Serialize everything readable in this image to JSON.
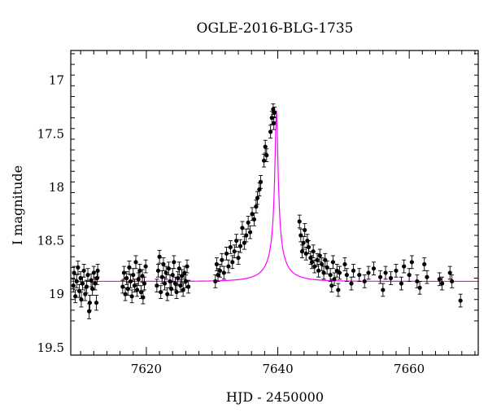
{
  "chart_data": {
    "type": "scatter",
    "title": "OGLE-2016-BLG-1735",
    "xlabel": "HJD - 2450000",
    "ylabel": "I magnitude",
    "xlim": [
      7608.5,
      7670.5
    ],
    "ylim": [
      19.57,
      16.72
    ],
    "y_inverted": true,
    "xticks": [
      7620,
      7640,
      7660
    ],
    "yticks": [
      17,
      17.5,
      18,
      18.5,
      19,
      19.5
    ],
    "grid": false,
    "legend": "none",
    "colors": {
      "points": "#000000",
      "model": "#ff00ff"
    },
    "model": {
      "type": "point-lens microlensing",
      "t0": 7639.8,
      "tE": 4.5,
      "u0": 0.05,
      "baseline_mag": 18.88,
      "peak_mag": 17.28
    },
    "series": [
      {
        "values": [
          [
            7608.9,
            18.92,
            0.06
          ],
          [
            7609.0,
            18.8,
            0.06
          ],
          [
            7609.2,
            19.02,
            0.06
          ],
          [
            7609.4,
            18.88,
            0.06
          ],
          [
            7609.6,
            18.75,
            0.06
          ],
          [
            7609.8,
            18.97,
            0.06
          ],
          [
            7610.0,
            18.85,
            0.06
          ],
          [
            7610.1,
            19.05,
            0.07
          ],
          [
            7610.3,
            18.9,
            0.06
          ],
          [
            7610.5,
            18.78,
            0.06
          ],
          [
            7610.7,
            19.0,
            0.06
          ],
          [
            7610.9,
            18.93,
            0.06
          ],
          [
            7611.1,
            18.82,
            0.06
          ],
          [
            7611.3,
            19.16,
            0.07
          ],
          [
            7611.4,
            19.08,
            0.07
          ],
          [
            7611.6,
            18.87,
            0.06
          ],
          [
            7611.8,
            18.95,
            0.06
          ],
          [
            7612.0,
            18.8,
            0.06
          ],
          [
            7612.2,
            18.9,
            0.06
          ],
          [
            7612.4,
            19.08,
            0.07
          ],
          [
            7612.5,
            18.85,
            0.06
          ],
          [
            7612.6,
            18.78,
            0.06
          ],
          [
            7616.4,
            18.93,
            0.06
          ],
          [
            7616.6,
            18.8,
            0.06
          ],
          [
            7616.8,
            19.0,
            0.06
          ],
          [
            7617.0,
            18.85,
            0.06
          ],
          [
            7617.2,
            18.95,
            0.06
          ],
          [
            7617.4,
            18.75,
            0.06
          ],
          [
            7617.6,
            18.88,
            0.06
          ],
          [
            7617.8,
            19.02,
            0.06
          ],
          [
            7618.0,
            18.82,
            0.06
          ],
          [
            7618.2,
            18.92,
            0.06
          ],
          [
            7618.4,
            18.7,
            0.06
          ],
          [
            7618.6,
            18.96,
            0.06
          ],
          [
            7618.8,
            18.86,
            0.06
          ],
          [
            7619.0,
            18.78,
            0.06
          ],
          [
            7619.2,
            18.98,
            0.06
          ],
          [
            7619.4,
            18.83,
            0.06
          ],
          [
            7619.5,
            19.03,
            0.06
          ],
          [
            7619.7,
            18.9,
            0.06
          ],
          [
            7619.9,
            18.74,
            0.06
          ],
          [
            7621.6,
            18.92,
            0.06
          ],
          [
            7621.8,
            18.78,
            0.06
          ],
          [
            7622.0,
            18.65,
            0.06
          ],
          [
            7622.2,
            18.98,
            0.06
          ],
          [
            7622.4,
            18.84,
            0.06
          ],
          [
            7622.6,
            18.72,
            0.06
          ],
          [
            7622.8,
            18.9,
            0.06
          ],
          [
            7623.0,
            18.8,
            0.06
          ],
          [
            7623.2,
            19.0,
            0.06
          ],
          [
            7623.4,
            18.76,
            0.06
          ],
          [
            7623.6,
            18.88,
            0.06
          ],
          [
            7623.8,
            18.95,
            0.06
          ],
          [
            7624.0,
            18.82,
            0.06
          ],
          [
            7624.2,
            18.7,
            0.06
          ],
          [
            7624.4,
            18.9,
            0.06
          ],
          [
            7624.6,
            18.98,
            0.06
          ],
          [
            7624.8,
            18.85,
            0.06
          ],
          [
            7625.0,
            18.76,
            0.06
          ],
          [
            7625.2,
            18.92,
            0.06
          ],
          [
            7625.4,
            18.83,
            0.06
          ],
          [
            7625.6,
            18.96,
            0.06
          ],
          [
            7625.8,
            18.8,
            0.06
          ],
          [
            7626.0,
            18.88,
            0.06
          ],
          [
            7626.2,
            18.74,
            0.06
          ],
          [
            7626.4,
            18.93,
            0.06
          ],
          [
            7630.5,
            18.88,
            0.06
          ],
          [
            7630.7,
            18.72,
            0.06
          ],
          [
            7630.9,
            18.82,
            0.06
          ],
          [
            7631.2,
            18.78,
            0.06
          ],
          [
            7631.5,
            18.68,
            0.06
          ],
          [
            7631.8,
            18.8,
            0.06
          ],
          [
            7632.2,
            18.62,
            0.06
          ],
          [
            7632.5,
            18.74,
            0.06
          ],
          [
            7632.8,
            18.56,
            0.06
          ],
          [
            7633.1,
            18.7,
            0.06
          ],
          [
            7633.4,
            18.6,
            0.06
          ],
          [
            7633.7,
            18.5,
            0.06
          ],
          [
            7634.0,
            18.66,
            0.06
          ],
          [
            7634.3,
            18.55,
            0.06
          ],
          [
            7634.6,
            18.38,
            0.06
          ],
          [
            7634.9,
            18.52,
            0.06
          ],
          [
            7635.2,
            18.45,
            0.06
          ],
          [
            7635.5,
            18.33,
            0.06
          ],
          [
            7635.8,
            18.42,
            0.06
          ],
          [
            7636.1,
            18.25,
            0.06
          ],
          [
            7636.4,
            18.3,
            0.06
          ],
          [
            7636.7,
            18.18,
            0.06
          ],
          [
            7636.9,
            18.1,
            0.06
          ],
          [
            7637.2,
            18.02,
            0.06
          ],
          [
            7637.4,
            17.95,
            0.06
          ],
          [
            7637.9,
            17.75,
            0.06
          ],
          [
            7638.1,
            17.62,
            0.06
          ],
          [
            7638.3,
            17.7,
            0.06
          ],
          [
            7638.9,
            17.48,
            0.06
          ],
          [
            7639.1,
            17.35,
            0.06
          ],
          [
            7639.3,
            17.27,
            0.05
          ],
          [
            7639.4,
            17.4,
            0.06
          ],
          [
            7639.5,
            17.3,
            0.05
          ],
          [
            7643.3,
            18.32,
            0.06
          ],
          [
            7643.5,
            18.45,
            0.06
          ],
          [
            7643.7,
            18.6,
            0.06
          ],
          [
            7643.9,
            18.52,
            0.06
          ],
          [
            7644.1,
            18.4,
            0.06
          ],
          [
            7644.3,
            18.62,
            0.06
          ],
          [
            7644.5,
            18.5,
            0.06
          ],
          [
            7644.7,
            18.56,
            0.06
          ],
          [
            7645.0,
            18.66,
            0.06
          ],
          [
            7645.2,
            18.7,
            0.06
          ],
          [
            7645.4,
            18.6,
            0.06
          ],
          [
            7645.6,
            18.74,
            0.06
          ],
          [
            7646.0,
            18.68,
            0.06
          ],
          [
            7646.2,
            18.78,
            0.06
          ],
          [
            7646.4,
            18.64,
            0.06
          ],
          [
            7646.7,
            18.72,
            0.06
          ],
          [
            7647.0,
            18.8,
            0.06
          ],
          [
            7647.2,
            18.68,
            0.06
          ],
          [
            7647.5,
            18.75,
            0.06
          ],
          [
            7648.0,
            18.82,
            0.06
          ],
          [
            7648.2,
            18.92,
            0.06
          ],
          [
            7648.4,
            18.7,
            0.06
          ],
          [
            7648.6,
            18.86,
            0.06
          ],
          [
            7649.0,
            18.78,
            0.06
          ],
          [
            7649.2,
            18.96,
            0.06
          ],
          [
            7649.4,
            18.8,
            0.06
          ],
          [
            7650.2,
            18.72,
            0.06
          ],
          [
            7650.5,
            18.82,
            0.06
          ],
          [
            7651.2,
            18.9,
            0.06
          ],
          [
            7651.5,
            18.78,
            0.06
          ],
          [
            7652.4,
            18.82,
            0.06
          ],
          [
            7653.2,
            18.88,
            0.06
          ],
          [
            7653.8,
            18.8,
            0.06
          ],
          [
            7654.6,
            18.76,
            0.06
          ],
          [
            7655.6,
            18.84,
            0.06
          ],
          [
            7656.0,
            18.96,
            0.06
          ],
          [
            7656.4,
            18.8,
            0.06
          ],
          [
            7657.2,
            18.85,
            0.06
          ],
          [
            7658.0,
            18.78,
            0.06
          ],
          [
            7658.8,
            18.9,
            0.06
          ],
          [
            7659.2,
            18.74,
            0.06
          ],
          [
            7660.0,
            18.82,
            0.06
          ],
          [
            7660.4,
            18.7,
            0.06
          ],
          [
            7661.2,
            18.88,
            0.06
          ],
          [
            7661.6,
            18.94,
            0.06
          ],
          [
            7662.3,
            18.72,
            0.06
          ],
          [
            7662.7,
            18.84,
            0.06
          ],
          [
            7664.6,
            18.86,
            0.06
          ],
          [
            7665.0,
            18.9,
            0.06
          ],
          [
            7666.2,
            18.8,
            0.06
          ],
          [
            7666.5,
            18.88,
            0.06
          ],
          [
            7667.8,
            19.06,
            0.06
          ]
        ]
      }
    ]
  }
}
